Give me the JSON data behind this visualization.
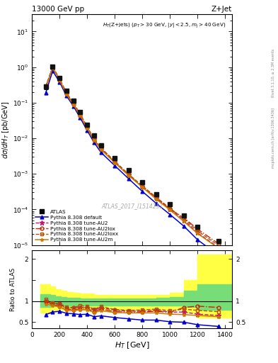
{
  "title_left": "13000 GeV pp",
  "title_right": "Z+Jet",
  "watermark": "ATLAS_2017_I1514251",
  "right_text": "mcplots.cern.ch [arXiv:1306.3436]",
  "right_text2": "Rivet 3.1.10, ≥ 2.3M events",
  "HT_centers": [
    100,
    150,
    200,
    250,
    300,
    350,
    400,
    450,
    500,
    600,
    700,
    800,
    900,
    1000,
    1100,
    1200,
    1350
  ],
  "HT_edges": [
    60,
    130,
    170,
    210,
    250,
    300,
    350,
    400,
    450,
    500,
    600,
    700,
    800,
    900,
    1000,
    1100,
    1200,
    1500
  ],
  "ATLAS_y": [
    0.28,
    1.05,
    0.5,
    0.22,
    0.115,
    0.054,
    0.024,
    0.012,
    0.0062,
    0.0028,
    0.00125,
    0.00058,
    0.00027,
    0.00014,
    6.8e-05,
    3.2e-05,
    1.3e-05
  ],
  "ATLAS_yerr_lo": [
    0.04,
    0.08,
    0.04,
    0.018,
    0.009,
    0.004,
    0.0018,
    0.001,
    0.0005,
    0.00022,
    0.0001,
    4.6e-05,
    2.2e-05,
    1.2e-05,
    6e-06,
    3e-06,
    1.2e-06
  ],
  "ATLAS_yerr_hi": [
    0.04,
    0.08,
    0.04,
    0.018,
    0.009,
    0.004,
    0.0018,
    0.001,
    0.0005,
    0.00022,
    0.0001,
    4.6e-05,
    2.2e-05,
    1.2e-05,
    6e-06,
    3e-06,
    1.2e-06
  ],
  "pythia_default_y": [
    0.19,
    0.78,
    0.38,
    0.155,
    0.08,
    0.037,
    0.0165,
    0.0076,
    0.004,
    0.0017,
    0.00073,
    0.00032,
    0.000148,
    7.2e-05,
    3.4e-05,
    1.4e-05,
    5.2e-06
  ],
  "pythia_AU2_y": [
    0.28,
    1.0,
    0.46,
    0.185,
    0.096,
    0.046,
    0.0205,
    0.0095,
    0.0052,
    0.0022,
    0.00095,
    0.00044,
    0.00021,
    0.000103,
    5e-05,
    2.2e-05,
    8.6e-06
  ],
  "pythia_AU2lox_y": [
    0.28,
    0.97,
    0.44,
    0.178,
    0.092,
    0.044,
    0.0196,
    0.009,
    0.005,
    0.0021,
    0.00093,
    0.00043,
    0.000205,
    0.000102,
    5.8e-05,
    2.8e-05,
    1.1e-05
  ],
  "pythia_AU2loxx_y": [
    0.29,
    1.01,
    0.47,
    0.188,
    0.098,
    0.048,
    0.021,
    0.0097,
    0.0054,
    0.00225,
    0.00098,
    0.00046,
    0.00022,
    0.000108,
    5.5e-05,
    2.5e-05,
    9.8e-06
  ],
  "pythia_AU2m_y": [
    0.26,
    0.95,
    0.43,
    0.172,
    0.088,
    0.043,
    0.019,
    0.0088,
    0.0048,
    0.00205,
    0.0009,
    0.00042,
    0.000195,
    9.6e-05,
    4.6e-05,
    2.1e-05,
    8.2e-06
  ],
  "color_default": "#0000cc",
  "color_AU2": "#cc1177",
  "color_AU2lox": "#cc2200",
  "color_AU2loxx": "#aa5500",
  "color_AU2m": "#cc7700",
  "color_ATLAS": "#111111",
  "band_yellow_lo": [
    0.72,
    0.78,
    0.8,
    0.8,
    0.8,
    0.8,
    0.8,
    0.8,
    0.8,
    0.8,
    0.8,
    0.8,
    0.8,
    0.8,
    0.8,
    0.72,
    0.6
  ],
  "band_yellow_hi": [
    1.4,
    1.35,
    1.28,
    1.25,
    1.22,
    1.2,
    1.18,
    1.18,
    1.15,
    1.15,
    1.15,
    1.15,
    1.15,
    1.15,
    1.2,
    1.5,
    2.1
  ],
  "band_green_lo": [
    0.86,
    0.88,
    0.9,
    0.9,
    0.9,
    0.9,
    0.9,
    0.9,
    0.9,
    0.9,
    0.9,
    0.9,
    0.9,
    0.9,
    0.9,
    0.86,
    0.8
  ],
  "band_green_hi": [
    1.16,
    1.14,
    1.12,
    1.1,
    1.08,
    1.08,
    1.07,
    1.07,
    1.06,
    1.06,
    1.06,
    1.06,
    1.06,
    1.08,
    1.1,
    1.25,
    1.4
  ],
  "ratio_default": [
    0.68,
    0.74,
    0.76,
    0.71,
    0.7,
    0.68,
    0.69,
    0.63,
    0.65,
    0.61,
    0.58,
    0.55,
    0.55,
    0.51,
    0.5,
    0.44,
    0.4
  ],
  "ratio_AU2": [
    1.0,
    0.95,
    0.92,
    0.84,
    0.84,
    0.85,
    0.85,
    0.79,
    0.84,
    0.79,
    0.76,
    0.76,
    0.78,
    0.74,
    0.74,
    0.69,
    0.66
  ],
  "ratio_AU2lox": [
    1.0,
    0.92,
    0.88,
    0.81,
    0.8,
    0.81,
    0.82,
    0.75,
    0.81,
    0.75,
    0.74,
    0.74,
    0.76,
    0.73,
    0.85,
    0.88,
    0.85
  ],
  "ratio_AU2loxx": [
    1.04,
    0.96,
    0.94,
    0.86,
    0.85,
    0.89,
    0.88,
    0.81,
    0.87,
    0.8,
    0.78,
    0.79,
    0.81,
    0.77,
    0.81,
    0.78,
    0.75
  ],
  "ratio_AU2m": [
    0.93,
    0.9,
    0.86,
    0.78,
    0.77,
    0.8,
    0.79,
    0.73,
    0.77,
    0.73,
    0.72,
    0.72,
    0.72,
    0.69,
    0.68,
    0.66,
    0.63
  ],
  "xlim": [
    0,
    1450
  ],
  "ylim_main": [
    1e-05,
    30
  ],
  "ylim_ratio": [
    0.35,
    2.2
  ],
  "ratio_yticks": [
    0.5,
    1.0,
    1.5,
    2.0
  ],
  "ratio_yticklabels": [
    "0.5",
    "1",
    "",
    "2"
  ]
}
